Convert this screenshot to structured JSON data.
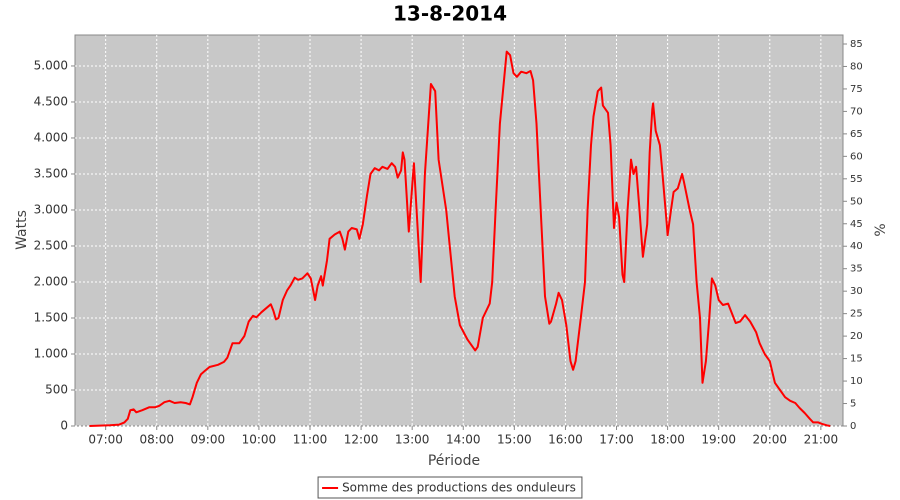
{
  "chart_data": {
    "type": "line",
    "title": "13-8-2014",
    "x_label": "Période",
    "y_label": "Watts",
    "y2_label": "%",
    "x": [
      "06:41",
      "07:05",
      "07:16",
      "07:22",
      "07:26",
      "07:29",
      "07:33",
      "07:36",
      "07:43",
      "07:51",
      "07:58",
      "08:03",
      "08:09",
      "08:15",
      "08:21",
      "08:28",
      "08:34",
      "08:39",
      "08:42",
      "08:47",
      "08:52",
      "08:56",
      "09:02",
      "09:12",
      "09:19",
      "09:23",
      "09:29",
      "09:37",
      "09:43",
      "09:48",
      "09:53",
      "09:57",
      "10:03",
      "10:10",
      "10:14",
      "10:17",
      "10:20",
      "10:23",
      "10:28",
      "10:33",
      "10:37",
      "10:42",
      "10:46",
      "10:51",
      "10:57",
      "11:01",
      "11:06",
      "11:09",
      "11:13",
      "11:15",
      "11:20",
      "11:23",
      "11:29",
      "11:35",
      "11:38",
      "11:41",
      "11:45",
      "11:49",
      "11:55",
      "11:58",
      "12:02",
      "12:07",
      "12:11",
      "12:16",
      "12:21",
      "12:25",
      "12:31",
      "12:36",
      "12:40",
      "12:43",
      "12:47",
      "12:49",
      "12:51",
      "12:56",
      "13:02",
      "13:10",
      "13:15",
      "13:22",
      "13:27",
      "13:31",
      "13:40",
      "13:50",
      "13:56",
      "14:05",
      "14:14",
      "14:17",
      "14:23",
      "14:31",
      "14:34",
      "14:38",
      "14:43",
      "14:51",
      "14:55",
      "14:59",
      "15:03",
      "15:08",
      "15:14",
      "15:19",
      "15:22",
      "15:26",
      "15:31",
      "15:36",
      "15:41",
      "15:43",
      "15:49",
      "15:52",
      "15:56",
      "16:01",
      "16:06",
      "16:09",
      "16:12",
      "16:18",
      "16:23",
      "16:26",
      "16:30",
      "16:33",
      "16:38",
      "16:42",
      "16:44",
      "16:50",
      "16:53",
      "16:57",
      "17:00",
      "17:03",
      "17:07",
      "17:09",
      "17:13",
      "17:17",
      "17:20",
      "17:23",
      "17:27",
      "17:31",
      "17:36",
      "17:39",
      "17:42",
      "17:43",
      "17:46",
      "17:51",
      "17:54",
      "17:59",
      "18:00",
      "18:04",
      "18:07",
      "18:12",
      "18:17",
      "18:19",
      "18:26",
      "18:30",
      "18:34",
      "18:38",
      "18:41",
      "18:45",
      "18:49",
      "18:52",
      "18:56",
      "19:00",
      "19:05",
      "19:11",
      "19:16",
      "19:20",
      "19:25",
      "19:31",
      "19:37",
      "19:44",
      "19:48",
      "19:54",
      "20:00",
      "20:06",
      "20:12",
      "20:18",
      "20:24",
      "20:30",
      "20:35",
      "20:41",
      "20:47",
      "20:51",
      "20:57",
      "21:01",
      "21:07",
      "21:11"
    ],
    "series": [
      {
        "name": "Somme des productions des onduleurs",
        "color": "#ff0000",
        "values": [
          0,
          10,
          20,
          50,
          100,
          220,
          230,
          190,
          220,
          260,
          260,
          280,
          330,
          350,
          320,
          330,
          320,
          300,
          400,
          600,
          720,
          760,
          820,
          850,
          890,
          950,
          1150,
          1150,
          1250,
          1450,
          1530,
          1510,
          1580,
          1650,
          1690,
          1600,
          1480,
          1500,
          1750,
          1880,
          1950,
          2060,
          2030,
          2050,
          2120,
          2050,
          1750,
          1950,
          2080,
          1950,
          2300,
          2600,
          2660,
          2700,
          2600,
          2450,
          2700,
          2750,
          2730,
          2600,
          2800,
          3200,
          3500,
          3580,
          3550,
          3600,
          3570,
          3650,
          3600,
          3450,
          3550,
          3800,
          3700,
          2700,
          3650,
          2000,
          3500,
          4750,
          4650,
          3700,
          3000,
          1800,
          1400,
          1200,
          1050,
          1100,
          1500,
          1700,
          2000,
          3000,
          4200,
          5200,
          5150,
          4900,
          4850,
          4920,
          4900,
          4930,
          4800,
          4200,
          3000,
          1800,
          1420,
          1450,
          1700,
          1850,
          1750,
          1400,
          900,
          780,
          900,
          1500,
          2000,
          3000,
          3900,
          4300,
          4650,
          4700,
          4450,
          4350,
          3900,
          2750,
          3100,
          2900,
          2100,
          2000,
          3000,
          3700,
          3500,
          3600,
          3000,
          2350,
          2800,
          3800,
          4400,
          4480,
          4100,
          3900,
          3500,
          2800,
          2650,
          3000,
          3250,
          3300,
          3500,
          3400,
          3000,
          2800,
          2000,
          1500,
          600,
          900,
          1500,
          2050,
          1950,
          1750,
          1680,
          1700,
          1550,
          1430,
          1450,
          1540,
          1450,
          1300,
          1150,
          1000,
          900,
          600,
          500,
          400,
          350,
          320,
          250,
          180,
          100,
          50,
          50,
          30,
          10,
          0
        ]
      }
    ],
    "xlim": [
      "06:24",
      "21:26"
    ],
    "xticks": [
      "07:00",
      "08:00",
      "09:00",
      "10:00",
      "11:00",
      "12:00",
      "13:00",
      "14:00",
      "15:00",
      "16:00",
      "17:00",
      "18:00",
      "19:00",
      "20:00",
      "21:00"
    ],
    "ylim": [
      0,
      5430
    ],
    "yticks": [
      0,
      500,
      {
        "value": 1000,
        "label": "1.000"
      },
      {
        "value": 1500,
        "label": "1.500"
      },
      {
        "value": 2000,
        "label": "2.000"
      },
      {
        "value": 2500,
        "label": "2.500"
      },
      {
        "value": 3000,
        "label": "3.000"
      },
      {
        "value": 3500,
        "label": "3.500"
      },
      {
        "value": 4000,
        "label": "4.000"
      },
      {
        "value": 4500,
        "label": "4.500"
      },
      {
        "value": 5000,
        "label": "5.000"
      }
    ],
    "y2lim": [
      0,
      87
    ],
    "y2ticks": [
      0,
      5,
      10,
      15,
      20,
      25,
      30,
      35,
      40,
      45,
      50,
      55,
      60,
      65,
      70,
      75,
      80,
      85
    ],
    "grid": true,
    "plot_background": "#c8c8c8",
    "legend": "bottom"
  }
}
